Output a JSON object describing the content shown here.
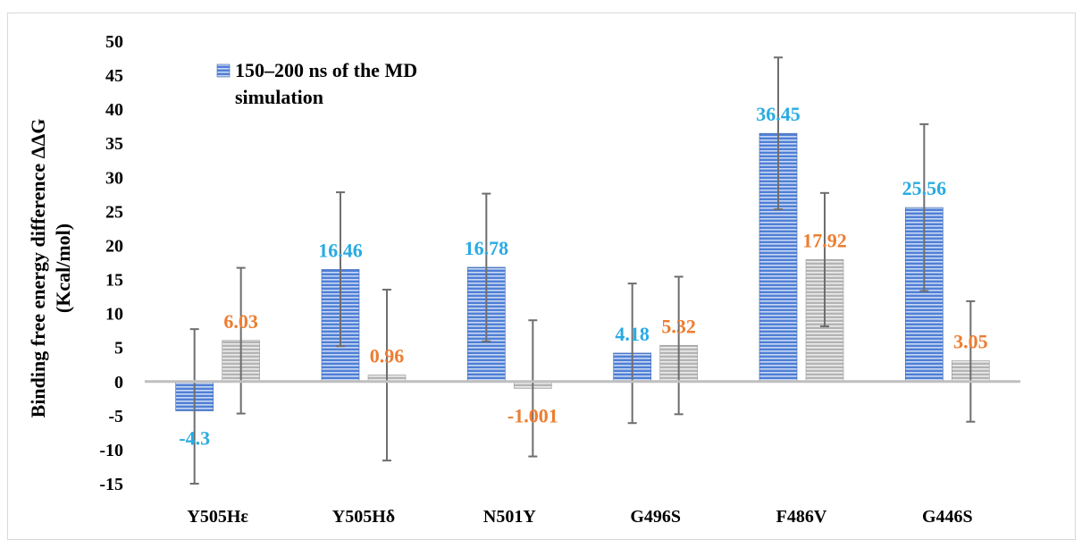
{
  "chart_data": {
    "type": "bar",
    "ylabel": "Binding free energy difference ΔΔG (Kcal/mol)",
    "ylabel_lines": [
      "Binding free energy difference ΔΔG",
      "(Kcal/mol)"
    ],
    "ylim": [
      -15,
      50
    ],
    "yticks": [
      -15,
      -10,
      -5,
      0,
      5,
      10,
      15,
      20,
      25,
      30,
      35,
      40,
      45,
      50
    ],
    "categories": [
      "Y505Hε",
      "Y505Hδ",
      "N501Y",
      "G496S",
      "F486V",
      "G446S"
    ],
    "grid": false,
    "legend_position": "top-left",
    "series": [
      {
        "name": "150–200 ns of the MD simulation",
        "legend_lines": [
          "150–200 ns of the MD",
          "simulation"
        ],
        "values": [
          -4.3,
          16.46,
          16.78,
          4.18,
          36.45,
          25.56
        ],
        "labels": [
          "-4.3",
          "16.46",
          "16.78",
          "4.18",
          "36.45",
          "25.56"
        ],
        "err_low": [
          -15,
          5.2,
          5.9,
          -6.1,
          25.3,
          13.3
        ],
        "err_high": [
          7.7,
          27.8,
          27.6,
          14.4,
          47.6,
          37.8
        ],
        "color": "#4472c4",
        "label_color": "#29abe2"
      },
      {
        "values": [
          6.03,
          0.96,
          -1.001,
          5.32,
          17.92,
          3.05
        ],
        "labels": [
          "6.03",
          "0.96",
          "-1.001",
          "5.32",
          "17.92",
          "3.05"
        ],
        "err_low": [
          -4.7,
          -11.6,
          -11.0,
          -4.8,
          8.1,
          -5.9
        ],
        "err_high": [
          16.7,
          13.5,
          9.0,
          15.4,
          27.7,
          11.8
        ],
        "color": "#a6a6a6",
        "label_color": "#ed7d31"
      }
    ]
  }
}
